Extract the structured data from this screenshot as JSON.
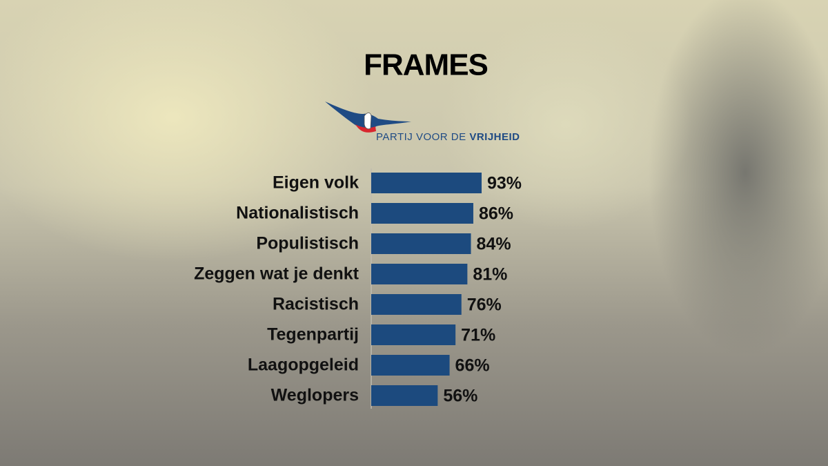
{
  "chart_data": {
    "type": "bar",
    "orientation": "horizontal",
    "title": "FRAMES",
    "subtitle_parts": [
      "PARTIJ VOOR DE",
      "VRIJHEID"
    ],
    "categories": [
      "Eigen volk",
      "Nationalistisch",
      "Populistisch",
      "Zeggen wat je denkt",
      "Racistisch",
      "Tegenpartij",
      "Laagopgeleid",
      "Weglopers"
    ],
    "values": [
      93,
      86,
      84,
      81,
      76,
      71,
      66,
      56
    ],
    "value_labels": [
      "93%",
      "86%",
      "84%",
      "81%",
      "76%",
      "71%",
      "66%",
      "56%"
    ],
    "color": "#1c4a7e"
  }
}
